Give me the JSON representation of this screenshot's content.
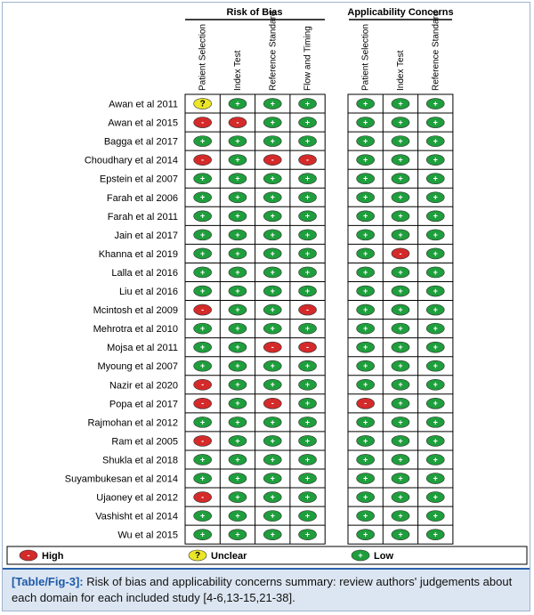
{
  "header": {
    "risk_title": "Risk of Bias",
    "applicability_title": "Applicability Concerns"
  },
  "risk_columns": [
    "Patient Selection",
    "Index Test",
    "Reference Standard",
    "Flow and Timing"
  ],
  "applicability_columns": [
    "Patient Selection",
    "Index Test",
    "Reference Standard"
  ],
  "legend": [
    {
      "symbol": "-",
      "label": "High",
      "color": "#d42a2a"
    },
    {
      "symbol": "?",
      "label": "Unclear",
      "color": "#ece726"
    },
    {
      "symbol": "+",
      "label": "Low",
      "color": "#1e9e3c"
    }
  ],
  "rows": [
    {
      "study": "Awan et al 2011",
      "risk": [
        "?",
        "+",
        "+",
        "+"
      ],
      "applicability": [
        "+",
        "+",
        "+"
      ]
    },
    {
      "study": "Awan et al 2015",
      "risk": [
        "-",
        "-",
        "+",
        "+"
      ],
      "applicability": [
        "+",
        "+",
        "+"
      ]
    },
    {
      "study": "Bagga et al 2017",
      "risk": [
        "+",
        "+",
        "+",
        "+"
      ],
      "applicability": [
        "+",
        "+",
        "+"
      ]
    },
    {
      "study": "Choudhary et al 2014",
      "risk": [
        "-",
        "+",
        "-",
        "-"
      ],
      "applicability": [
        "+",
        "+",
        "+"
      ]
    },
    {
      "study": "Epstein et al 2007",
      "risk": [
        "+",
        "+",
        "+",
        "+"
      ],
      "applicability": [
        "+",
        "+",
        "+"
      ]
    },
    {
      "study": "Farah et al 2006",
      "risk": [
        "+",
        "+",
        "+",
        "+"
      ],
      "applicability": [
        "+",
        "+",
        "+"
      ]
    },
    {
      "study": "Farah et al 2011",
      "risk": [
        "+",
        "+",
        "+",
        "+"
      ],
      "applicability": [
        "+",
        "+",
        "+"
      ]
    },
    {
      "study": "Jain et al 2017",
      "risk": [
        "+",
        "+",
        "+",
        "+"
      ],
      "applicability": [
        "+",
        "+",
        "+"
      ]
    },
    {
      "study": "Khanna et al 2019",
      "risk": [
        "+",
        "+",
        "+",
        "+"
      ],
      "applicability": [
        "+",
        "-",
        "+"
      ]
    },
    {
      "study": "Lalla et al 2016",
      "risk": [
        "+",
        "+",
        "+",
        "+"
      ],
      "applicability": [
        "+",
        "+",
        "+"
      ]
    },
    {
      "study": "Liu et al 2016",
      "risk": [
        "+",
        "+",
        "+",
        "+"
      ],
      "applicability": [
        "+",
        "+",
        "+"
      ]
    },
    {
      "study": "Mcintosh et al 2009",
      "risk": [
        "-",
        "+",
        "+",
        "-"
      ],
      "applicability": [
        "+",
        "+",
        "+"
      ]
    },
    {
      "study": "Mehrotra et al 2010",
      "risk": [
        "+",
        "+",
        "+",
        "+"
      ],
      "applicability": [
        "+",
        "+",
        "+"
      ]
    },
    {
      "study": "Mojsa et al 2011",
      "risk": [
        "+",
        "+",
        "-",
        "-"
      ],
      "applicability": [
        "+",
        "+",
        "+"
      ]
    },
    {
      "study": "Myoung et al 2007",
      "risk": [
        "+",
        "+",
        "+",
        "+"
      ],
      "applicability": [
        "+",
        "+",
        "+"
      ]
    },
    {
      "study": "Nazir et al 2020",
      "risk": [
        "-",
        "+",
        "+",
        "+"
      ],
      "applicability": [
        "+",
        "+",
        "+"
      ]
    },
    {
      "study": "Popa et al 2017",
      "risk": [
        "-",
        "+",
        "-",
        "+"
      ],
      "applicability": [
        "-",
        "+",
        "+"
      ]
    },
    {
      "study": "Rajmohan et al 2012",
      "risk": [
        "+",
        "+",
        "+",
        "+"
      ],
      "applicability": [
        "+",
        "+",
        "+"
      ]
    },
    {
      "study": "Ram et al 2005",
      "risk": [
        "-",
        "+",
        "+",
        "+"
      ],
      "applicability": [
        "+",
        "+",
        "+"
      ]
    },
    {
      "study": "Shukla et al 2018",
      "risk": [
        "+",
        "+",
        "+",
        "+"
      ],
      "applicability": [
        "+",
        "+",
        "+"
      ]
    },
    {
      "study": "Suyambukesan et al 2014",
      "risk": [
        "+",
        "+",
        "+",
        "+"
      ],
      "applicability": [
        "+",
        "+",
        "+"
      ]
    },
    {
      "study": "Ujaoney et al 2012",
      "risk": [
        "-",
        "+",
        "+",
        "+"
      ],
      "applicability": [
        "+",
        "+",
        "+"
      ]
    },
    {
      "study": "Vashisht et al 2014",
      "risk": [
        "+",
        "+",
        "+",
        "+"
      ],
      "applicability": [
        "+",
        "+",
        "+"
      ]
    },
    {
      "study": "Wu et al 2015",
      "risk": [
        "+",
        "+",
        "+",
        "+"
      ],
      "applicability": [
        "+",
        "+",
        "+"
      ]
    }
  ],
  "caption": {
    "label": "[Table/Fig-3]:",
    "text": "Risk of bias and applicability concerns summary: review authors' judgements about each domain for each included study [4-6,13-15,21-38]."
  }
}
